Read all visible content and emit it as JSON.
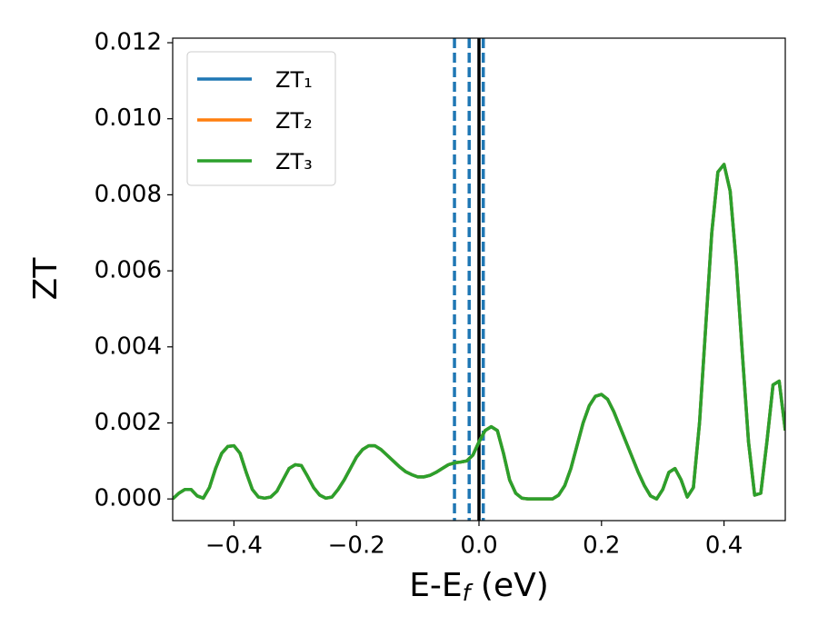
{
  "chart_data": {
    "type": "line",
    "xlabel": [
      "E-E",
      "f",
      " (eV)"
    ],
    "ylabel": "ZT",
    "x": [
      -0.5,
      -0.49,
      -0.48,
      -0.47,
      -0.46,
      -0.45,
      -0.44,
      -0.43,
      -0.42,
      -0.41,
      -0.4,
      -0.39,
      -0.38,
      -0.37,
      -0.36,
      -0.35,
      -0.34,
      -0.33,
      -0.32,
      -0.31,
      -0.3,
      -0.29,
      -0.28,
      -0.27,
      -0.26,
      -0.25,
      -0.24,
      -0.23,
      -0.22,
      -0.21,
      -0.2,
      -0.19,
      -0.18,
      -0.17,
      -0.16,
      -0.15,
      -0.14,
      -0.13,
      -0.12,
      -0.11,
      -0.1,
      -0.09,
      -0.08,
      -0.07,
      -0.06,
      -0.05,
      -0.04,
      -0.03,
      -0.02,
      -0.01,
      0,
      0.01,
      0.02,
      0.03,
      0.04,
      0.05,
      0.06,
      0.07,
      0.08,
      0.09,
      0.1,
      0.11,
      0.12,
      0.13,
      0.14,
      0.15,
      0.16,
      0.17,
      0.18,
      0.19,
      0.2,
      0.21,
      0.22,
      0.23,
      0.24,
      0.25,
      0.26,
      0.27,
      0.28,
      0.29,
      0.3,
      0.31,
      0.32,
      0.33,
      0.34,
      0.35,
      0.36,
      0.37,
      0.38,
      0.39,
      0.4,
      0.41,
      0.42,
      0.43,
      0.44,
      0.45,
      0.46,
      0.47,
      0.48,
      0.49,
      0.5
    ],
    "series": [
      {
        "name": "ZT₁",
        "color": "#1f77b4",
        "values": [
          0,
          0.00015,
          0.00025,
          0.00025,
          8e-05,
          2e-05,
          0.0003,
          0.0008,
          0.0012,
          0.00138,
          0.0014,
          0.0012,
          0.0007,
          0.00025,
          5e-05,
          2e-05,
          5e-05,
          0.0002,
          0.0005,
          0.0008,
          0.0009,
          0.00088,
          0.0006,
          0.0003,
          0.0001,
          2e-05,
          5e-05,
          0.00025,
          0.0005,
          0.0008,
          0.0011,
          0.0013,
          0.0014,
          0.0014,
          0.0013,
          0.00115,
          0.001,
          0.00085,
          0.00072,
          0.00064,
          0.00058,
          0.00058,
          0.00062,
          0.0007,
          0.0008,
          0.0009,
          0.00095,
          0.00097,
          0.001,
          0.00115,
          0.0015,
          0.0018,
          0.0019,
          0.0018,
          0.0012,
          0.0005,
          0.00015,
          2e-05,
          0,
          0,
          0,
          0,
          0,
          0.0001,
          0.00035,
          0.0008,
          0.0014,
          0.002,
          0.00245,
          0.0027,
          0.00275,
          0.00262,
          0.0023,
          0.0019,
          0.0015,
          0.0011,
          0.0007,
          0.00035,
          8e-05,
          0,
          0.00025,
          0.0007,
          0.0008,
          0.0005,
          5e-05,
          0.0003,
          0.002,
          0.0045,
          0.007,
          0.0086,
          0.0088,
          0.0081,
          0.0062,
          0.0038,
          0.0015,
          0.0001,
          0.00015,
          0.0015,
          0.003,
          0.0031,
          0.0018
        ]
      },
      {
        "name": "ZT₂",
        "color": "#ff7f0e",
        "values": [
          0,
          0.00015,
          0.00025,
          0.00025,
          8e-05,
          2e-05,
          0.0003,
          0.0008,
          0.0012,
          0.00138,
          0.0014,
          0.0012,
          0.0007,
          0.00025,
          5e-05,
          2e-05,
          5e-05,
          0.0002,
          0.0005,
          0.0008,
          0.0009,
          0.00088,
          0.0006,
          0.0003,
          0.0001,
          2e-05,
          5e-05,
          0.00025,
          0.0005,
          0.0008,
          0.0011,
          0.0013,
          0.0014,
          0.0014,
          0.0013,
          0.00115,
          0.001,
          0.00085,
          0.00072,
          0.00064,
          0.00058,
          0.00058,
          0.00062,
          0.0007,
          0.0008,
          0.0009,
          0.00095,
          0.00097,
          0.001,
          0.00115,
          0.0015,
          0.0018,
          0.0019,
          0.0018,
          0.0012,
          0.0005,
          0.00015,
          2e-05,
          0,
          0,
          0,
          0,
          0,
          0.0001,
          0.00035,
          0.0008,
          0.0014,
          0.002,
          0.00245,
          0.0027,
          0.00275,
          0.00262,
          0.0023,
          0.0019,
          0.0015,
          0.0011,
          0.0007,
          0.00035,
          8e-05,
          0,
          0.00025,
          0.0007,
          0.0008,
          0.0005,
          5e-05,
          0.0003,
          0.002,
          0.0045,
          0.007,
          0.0086,
          0.0088,
          0.0081,
          0.0062,
          0.0038,
          0.0015,
          0.0001,
          0.00015,
          0.0015,
          0.003,
          0.0031,
          0.0018
        ]
      },
      {
        "name": "ZT₃",
        "color": "#2ca02c",
        "values": [
          0,
          0.00015,
          0.00025,
          0.00025,
          8e-05,
          2e-05,
          0.0003,
          0.0008,
          0.0012,
          0.00138,
          0.0014,
          0.0012,
          0.0007,
          0.00025,
          5e-05,
          2e-05,
          5e-05,
          0.0002,
          0.0005,
          0.0008,
          0.0009,
          0.00088,
          0.0006,
          0.0003,
          0.0001,
          2e-05,
          5e-05,
          0.00025,
          0.0005,
          0.0008,
          0.0011,
          0.0013,
          0.0014,
          0.0014,
          0.0013,
          0.00115,
          0.001,
          0.00085,
          0.00072,
          0.00064,
          0.00058,
          0.00058,
          0.00062,
          0.0007,
          0.0008,
          0.0009,
          0.00095,
          0.00097,
          0.001,
          0.00115,
          0.0015,
          0.0018,
          0.0019,
          0.0018,
          0.0012,
          0.0005,
          0.00015,
          2e-05,
          0,
          0,
          0,
          0,
          0,
          0.0001,
          0.00035,
          0.0008,
          0.0014,
          0.002,
          0.00245,
          0.0027,
          0.00275,
          0.00262,
          0.0023,
          0.0019,
          0.0015,
          0.0011,
          0.0007,
          0.00035,
          8e-05,
          0,
          0.00025,
          0.0007,
          0.0008,
          0.0005,
          5e-05,
          0.0003,
          0.002,
          0.0045,
          0.007,
          0.0086,
          0.0088,
          0.0081,
          0.0062,
          0.0038,
          0.0015,
          0.0001,
          0.00015,
          0.0015,
          0.003,
          0.0031,
          0.0018
        ]
      }
    ],
    "vlines": [
      {
        "x": -0.04,
        "color": "#1f77b4",
        "style": "dashed"
      },
      {
        "x": -0.016,
        "color": "#1f77b4",
        "style": "dashed"
      },
      {
        "x": 0.007,
        "color": "#1f77b4",
        "style": "dashed"
      },
      {
        "x": 0,
        "color": "#000000",
        "style": "solid"
      }
    ],
    "xlim": [
      -0.5,
      0.5
    ],
    "ylim": [
      -0.00057,
      0.01212
    ],
    "xticks": [
      {
        "value": -0.4,
        "label": "−0.4"
      },
      {
        "value": -0.2,
        "label": "−0.2"
      },
      {
        "value": 0,
        "label": "0.0"
      },
      0.2,
      0.4
    ],
    "yticks": [
      {
        "value": 0,
        "label": "0.000"
      },
      0.002,
      0.004,
      0.006,
      0.008,
      {
        "value": 0.01,
        "label": "0.010"
      },
      0.012
    ],
    "legend": "upper left",
    "grid": false
  }
}
